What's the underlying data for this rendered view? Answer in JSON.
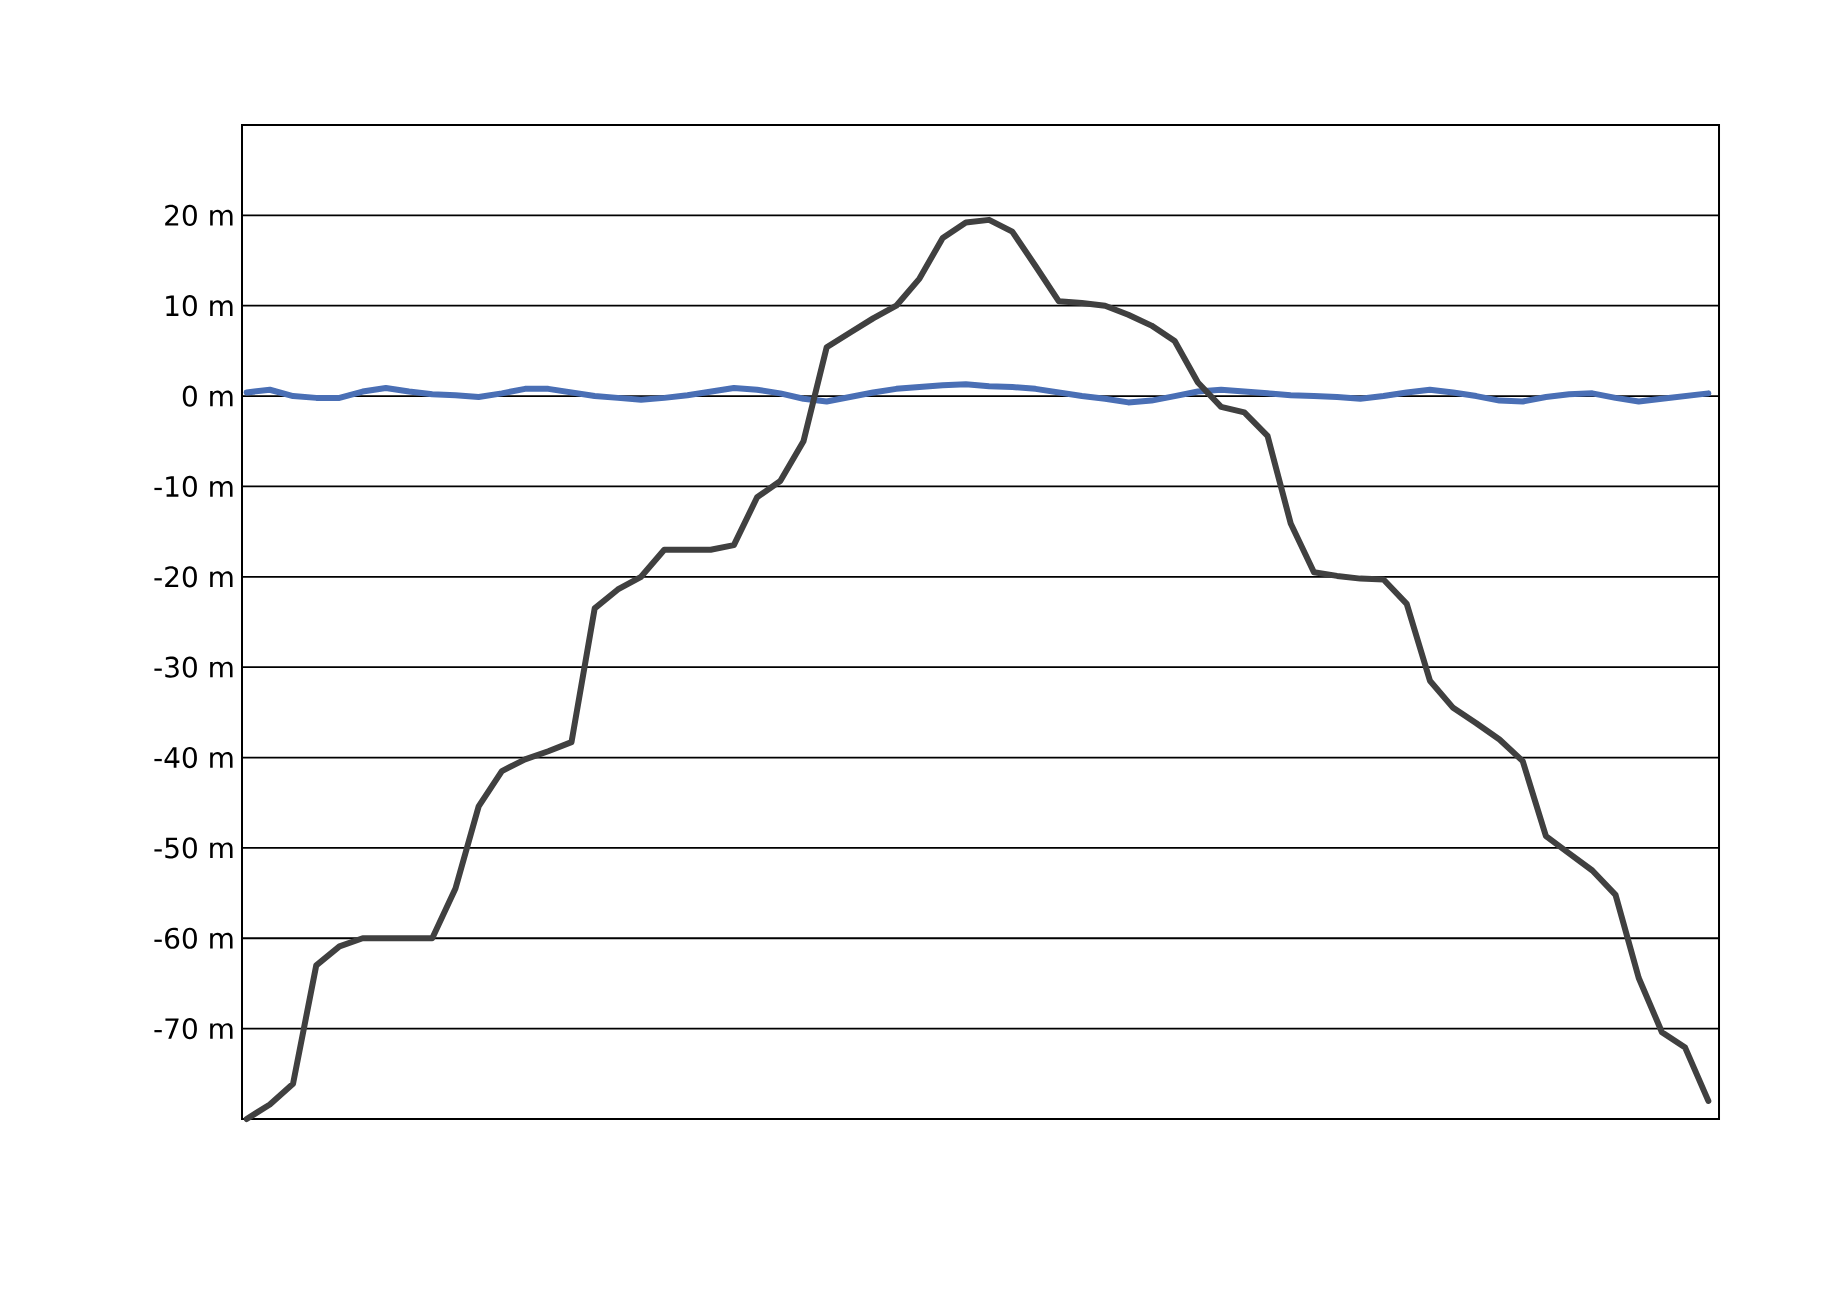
{
  "chart_data": {
    "type": "line",
    "categories": [
      null,
      null,
      null,
      null,
      null,
      null,
      null,
      null,
      null,
      null,
      null,
      null,
      null,
      null,
      null,
      null,
      null,
      null,
      null,
      null,
      null,
      null,
      null,
      null,
      null,
      null,
      null,
      null,
      null,
      null,
      null,
      null,
      null,
      null,
      null,
      null,
      null,
      null,
      null,
      null,
      null,
      null,
      null,
      null,
      null,
      null,
      null,
      null,
      null,
      null,
      null,
      null,
      null,
      null,
      null,
      null,
      null,
      null,
      null,
      null,
      null,
      null,
      null,
      null
    ],
    "ylim": [
      -80,
      30
    ],
    "yticks": [
      {
        "value": -70,
        "label": "-70 m"
      },
      {
        "value": -60,
        "label": "-60 m"
      },
      {
        "value": -50,
        "label": "-50 m"
      },
      {
        "value": -40,
        "label": "-40 m"
      },
      {
        "value": -30,
        "label": "-30 m"
      },
      {
        "value": -20,
        "label": "-20 m"
      },
      {
        "value": -10,
        "label": "-10 m"
      },
      {
        "value": 0,
        "label": "0  m"
      },
      {
        "value": 10,
        "label": "10 m"
      },
      {
        "value": 20,
        "label": "20 m"
      }
    ],
    "grid": "y",
    "marker": "none",
    "line_style": "solid",
    "series": [
      {
        "color": "#4a6fb5",
        "values": [
          0.4,
          0.7,
          0,
          -0.2,
          -0.2,
          0.5,
          0.9,
          0.5,
          0.2,
          0.1,
          -0.1,
          0.3,
          0.8,
          0.8,
          0.4,
          0,
          -0.2,
          -0.4,
          -0.2,
          0.1,
          0.5,
          0.9,
          0.7,
          0.3,
          -0.3,
          -0.6,
          -0.1,
          0.4,
          0.8,
          1,
          1.2,
          1.3,
          1.1,
          1,
          0.8,
          0.4,
          0,
          -0.3,
          -0.7,
          -0.5,
          0,
          0.5,
          0.7,
          0.5,
          0.3,
          0.1,
          0,
          -0.1,
          -0.3,
          0,
          0.4,
          0.7,
          0.4,
          0,
          -0.5,
          -0.6,
          -0.1,
          0.2,
          0.3,
          -0.2,
          -0.6,
          -0.3,
          0,
          0.3
        ]
      },
      {
        "color": "#404040",
        "values": [
          -80,
          -78.4,
          -76.1,
          -63,
          -60.9,
          -60,
          -60,
          -60,
          -60,
          -54.5,
          -45.4,
          -41.5,
          -40.2,
          -39.3,
          -38.3,
          -23.5,
          -21.4,
          -20,
          -17,
          -17,
          -17,
          -16.5,
          -11.2,
          -9.4,
          -5,
          5.4,
          7,
          8.6,
          10,
          13,
          17.5,
          19.2,
          19.5,
          18.2,
          14.4,
          10.5,
          10.3,
          10,
          9,
          7.8,
          6.1,
          1.5,
          -1.2,
          -1.8,
          -4.4,
          -14.1,
          -19.5,
          -19.9,
          -20.2,
          -20.3,
          -23,
          -31.5,
          -34.5,
          -36.2,
          -38,
          -40.4,
          -48.7,
          -50.6,
          -52.5,
          -55.2,
          -64.4,
          -70.4,
          -72.1,
          -78
        ]
      }
    ]
  }
}
